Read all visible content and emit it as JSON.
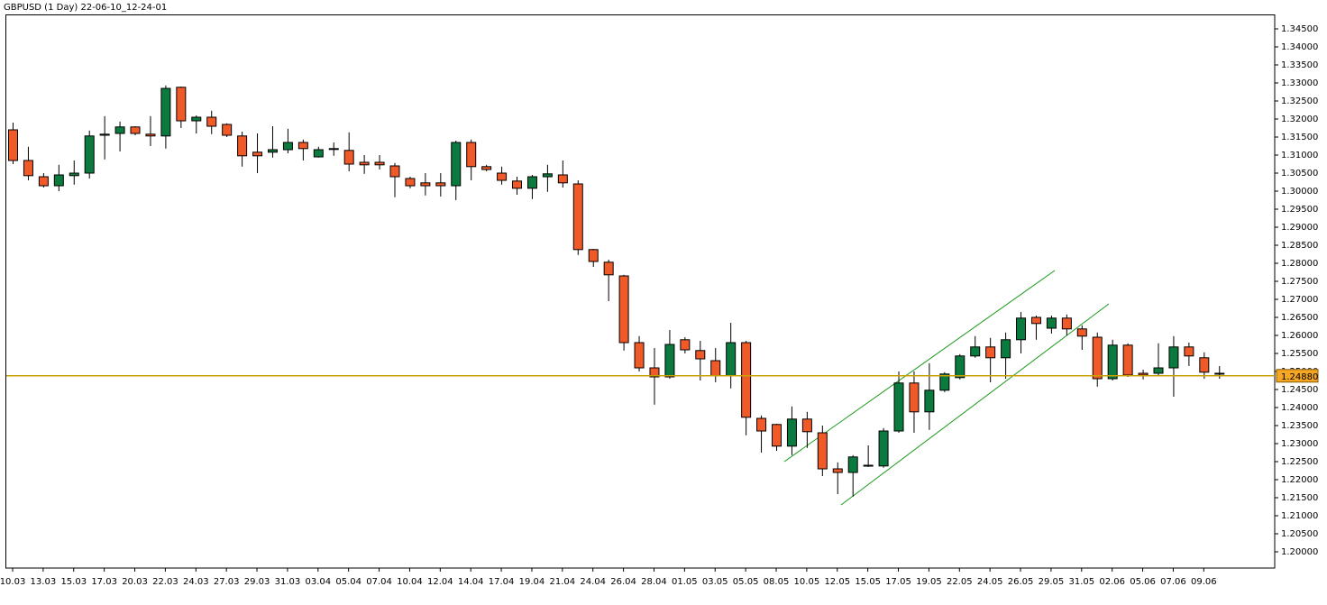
{
  "chart_data": {
    "type": "candlestick",
    "title": "GBPUSD (1 Day) 22-06-10_12-24-01",
    "categories": [
      "10.03",
      null,
      "13.03",
      null,
      "15.03",
      null,
      "17.03",
      null,
      "20.03",
      null,
      "22.03",
      null,
      "24.03",
      null,
      "27.03",
      null,
      "29.03",
      null,
      "31.03",
      null,
      "03.04",
      null,
      "05.04",
      null,
      "07.04",
      null,
      "10.04",
      null,
      "12.04",
      null,
      "14.04",
      null,
      "17.04",
      null,
      "19.04",
      null,
      "21.04",
      null,
      "24.04",
      null,
      "26.04",
      null,
      "28.04",
      null,
      "01.05",
      null,
      "03.05",
      null,
      "05.05",
      null,
      "08.05",
      null,
      "10.05",
      null,
      "12.05",
      null,
      "15.05",
      null,
      "17.05",
      null,
      "19.05",
      null,
      "22.05",
      null,
      "24.05",
      null,
      "26.05",
      null,
      "29.05",
      null,
      "31.05",
      null,
      "02.06",
      null,
      "05.06",
      null,
      "07.06",
      null,
      "09.06",
      null
    ],
    "open": [
      1.317,
      1.3085,
      1.304,
      1.3015,
      1.3043,
      1.305,
      1.3155,
      1.316,
      1.3178,
      1.3158,
      1.3153,
      1.3288,
      1.3195,
      1.3205,
      1.3185,
      1.3153,
      1.3108,
      1.3108,
      1.3115,
      1.3135,
      1.3095,
      1.3118,
      1.3113,
      1.308,
      1.308,
      1.307,
      1.3035,
      1.3023,
      1.3023,
      1.3015,
      1.3135,
      1.3068,
      1.305,
      1.3028,
      1.3008,
      1.304,
      1.3045,
      1.302,
      1.2838,
      1.2803,
      1.2765,
      1.258,
      1.251,
      1.2485,
      1.2588,
      1.2558,
      1.253,
      1.2488,
      1.258,
      1.237,
      1.2353,
      1.2293,
      1.2368,
      1.233,
      1.223,
      1.222,
      1.2238,
      1.2238,
      1.2335,
      1.2468,
      1.2388,
      1.2448,
      1.2483,
      1.2543,
      1.2568,
      1.2538,
      1.2588,
      1.265,
      1.262,
      1.2648,
      1.2618,
      1.2595,
      1.248,
      1.2573,
      1.2495,
      1.2495,
      1.251,
      1.2568,
      1.2538,
      1.2495
    ],
    "high": [
      1.319,
      1.3123,
      1.305,
      1.3073,
      1.3085,
      1.3168,
      1.3208,
      1.3193,
      1.318,
      1.3208,
      1.3293,
      1.329,
      1.321,
      1.3223,
      1.3188,
      1.3165,
      1.316,
      1.318,
      1.3173,
      1.3143,
      1.3123,
      1.3135,
      1.3163,
      1.31,
      1.31,
      1.3078,
      1.304,
      1.305,
      1.305,
      1.314,
      1.3143,
      1.3073,
      1.3068,
      1.304,
      1.3045,
      1.3073,
      1.3085,
      1.303,
      1.284,
      1.281,
      1.2768,
      1.2598,
      1.2565,
      1.2615,
      1.2595,
      1.2585,
      1.2565,
      1.2635,
      1.2585,
      1.2378,
      1.2355,
      1.2403,
      1.2388,
      1.235,
      1.2248,
      1.2268,
      1.2295,
      1.2343,
      1.25,
      1.25,
      1.2523,
      1.2498,
      1.2548,
      1.2598,
      1.2593,
      1.2608,
      1.2665,
      1.2655,
      1.2655,
      1.2658,
      1.2628,
      1.2608,
      1.2588,
      1.2578,
      1.2505,
      1.2578,
      1.2598,
      1.258,
      1.2553,
      1.2515
    ],
    "low": [
      1.3075,
      1.303,
      1.301,
      1.3,
      1.3018,
      1.3035,
      1.3088,
      1.311,
      1.3155,
      1.3125,
      1.3118,
      1.3175,
      1.316,
      1.3158,
      1.315,
      1.3068,
      1.305,
      1.3093,
      1.3105,
      1.3085,
      1.3093,
      1.3098,
      1.3055,
      1.3048,
      1.306,
      1.2983,
      1.3008,
      1.2988,
      1.2985,
      1.2975,
      1.303,
      1.3055,
      1.3018,
      1.299,
      1.2978,
      1.2998,
      1.301,
      1.2823,
      1.279,
      1.2695,
      1.2558,
      1.25,
      1.2408,
      1.248,
      1.255,
      1.2475,
      1.247,
      1.2453,
      1.2323,
      1.2275,
      1.228,
      1.2268,
      1.2288,
      1.221,
      1.216,
      1.2153,
      1.2235,
      1.2233,
      1.233,
      1.233,
      1.2338,
      1.2443,
      1.2478,
      1.2538,
      1.247,
      1.248,
      1.255,
      1.2588,
      1.2605,
      1.26,
      1.256,
      1.2458,
      1.2475,
      1.2485,
      1.2478,
      1.249,
      1.243,
      1.2515,
      1.248,
      1.248
    ],
    "close": [
      1.3085,
      1.3043,
      1.3015,
      1.3045,
      1.305,
      1.3153,
      1.3158,
      1.3178,
      1.316,
      1.3153,
      1.3285,
      1.3195,
      1.3205,
      1.318,
      1.3155,
      1.3098,
      1.3098,
      1.3115,
      1.3135,
      1.3118,
      1.3115,
      1.3118,
      1.3075,
      1.3073,
      1.3073,
      1.304,
      1.3015,
      1.3015,
      1.3015,
      1.3135,
      1.3068,
      1.306,
      1.303,
      1.3008,
      1.304,
      1.3048,
      1.3023,
      1.2838,
      1.2805,
      1.2768,
      1.258,
      1.251,
      1.2485,
      1.2575,
      1.256,
      1.2535,
      1.2488,
      1.258,
      1.2373,
      1.2335,
      1.2293,
      1.2368,
      1.2333,
      1.223,
      1.222,
      1.2263,
      1.224,
      1.2335,
      1.2468,
      1.2388,
      1.2448,
      1.2493,
      1.2543,
      1.2568,
      1.2538,
      1.2588,
      1.2648,
      1.2633,
      1.2648,
      1.2618,
      1.2598,
      1.248,
      1.2573,
      1.249,
      1.249,
      1.251,
      1.2568,
      1.2543,
      1.2498,
      1.2493
    ],
    "up_color": "#0b7a3e",
    "down_color": "#f05a28",
    "current_price": {
      "value": 1.2488,
      "label": "1.24880"
    },
    "current_price_color": "#c8a000",
    "ylim": [
      1.1955,
      1.349
    ],
    "yticks": [
      {
        "value": 1.345,
        "label": "1.34500"
      },
      {
        "value": 1.34,
        "label": "1.34000"
      },
      {
        "value": 1.335,
        "label": "1.33500"
      },
      {
        "value": 1.33,
        "label": "1.33000"
      },
      {
        "value": 1.325,
        "label": "1.32500"
      },
      {
        "value": 1.32,
        "label": "1.32000"
      },
      {
        "value": 1.315,
        "label": "1.31500"
      },
      {
        "value": 1.31,
        "label": "1.31000"
      },
      {
        "value": 1.305,
        "label": "1.30500"
      },
      {
        "value": 1.3,
        "label": "1.30000"
      },
      {
        "value": 1.295,
        "label": "1.29500"
      },
      {
        "value": 1.29,
        "label": "1.29000"
      },
      {
        "value": 1.285,
        "label": "1.28500"
      },
      {
        "value": 1.28,
        "label": "1.28000"
      },
      {
        "value": 1.275,
        "label": "1.27500"
      },
      {
        "value": 1.27,
        "label": "1.27000"
      },
      {
        "value": 1.265,
        "label": "1.26500"
      },
      {
        "value": 1.26,
        "label": "1.26000"
      },
      {
        "value": 1.255,
        "label": "1.25500"
      },
      {
        "value": 1.25,
        "label": "1.25000"
      },
      {
        "value": 1.245,
        "label": "1.24500"
      },
      {
        "value": 1.24,
        "label": "1.24000"
      },
      {
        "value": 1.235,
        "label": "1.23500"
      },
      {
        "value": 1.23,
        "label": "1.23000"
      },
      {
        "value": 1.225,
        "label": "1.22500"
      },
      {
        "value": 1.22,
        "label": "1.22000"
      },
      {
        "value": 1.215,
        "label": "1.21500"
      },
      {
        "value": 1.21,
        "label": "1.21000"
      },
      {
        "value": 1.205,
        "label": "1.20500"
      },
      {
        "value": 1.2,
        "label": "1.20000"
      }
    ]
  }
}
